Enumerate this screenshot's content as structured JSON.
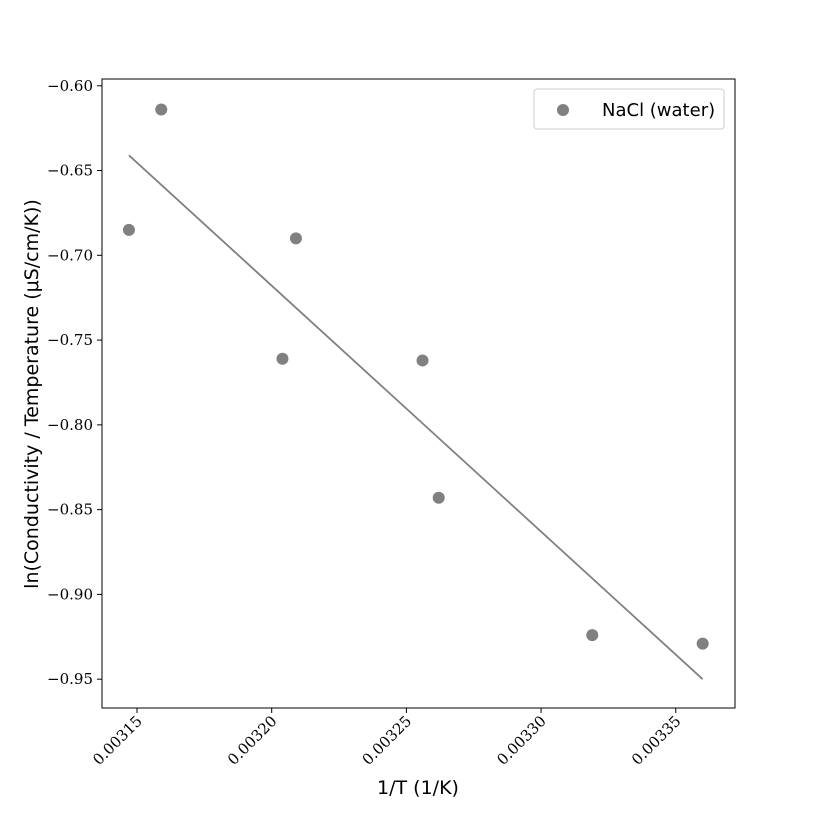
{
  "chart_data": {
    "type": "scatter",
    "xlabel": "1/T (1/K)",
    "ylabel": "ln(Conductivity / Temperature (μS/cm/K))",
    "xlim": [
      0.003137,
      0.003372
    ],
    "ylim": [
      -0.967,
      -0.596
    ],
    "xticks": [
      0.00315,
      0.0032,
      0.00325,
      0.0033,
      0.00335
    ],
    "xtick_labels": [
      "0.00315",
      "0.00320",
      "0.00325",
      "0.00330",
      "0.00335"
    ],
    "yticks": [
      -0.6,
      -0.65,
      -0.7,
      -0.75,
      -0.8,
      -0.85,
      -0.9,
      -0.95
    ],
    "ytick_labels": [
      "−0.60",
      "−0.65",
      "−0.70",
      "−0.75",
      "−0.80",
      "−0.85",
      "−0.90",
      "−0.95"
    ],
    "grid": false,
    "legend_position": "top-right",
    "series": [
      {
        "name": "NaCl (water)",
        "type": "scatter",
        "color": "#808080",
        "x": [
          0.003147,
          0.003159,
          0.003204,
          0.003209,
          0.003256,
          0.003262,
          0.003319,
          0.00336
        ],
        "y": [
          -0.685,
          -0.614,
          -0.761,
          -0.69,
          -0.762,
          -0.843,
          -0.924,
          -0.929
        ]
      },
      {
        "type": "line",
        "color": "#808080",
        "x": [
          0.003147,
          0.00336
        ],
        "y": [
          -0.641,
          -0.95
        ]
      }
    ]
  }
}
